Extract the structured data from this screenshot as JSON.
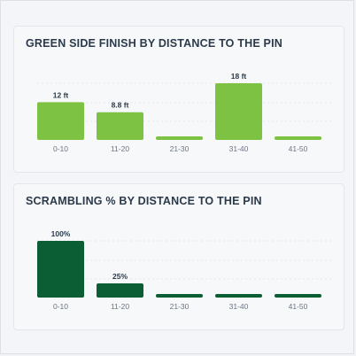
{
  "chart_data": [
    {
      "type": "bar",
      "title": "GREEN SIDE FINISH BY DISTANCE TO THE PIN",
      "categories": [
        "0-10",
        "11-20",
        "21-30",
        "31-40",
        "41-50"
      ],
      "values": [
        12,
        8.8,
        0,
        18,
        0
      ],
      "data_labels": [
        "12 ft",
        "8.8 ft",
        "",
        "18 ft",
        ""
      ],
      "unit": "ft",
      "ylim": [
        0,
        18
      ],
      "grid": true,
      "color": "#7dc242"
    },
    {
      "type": "bar",
      "title": "SCRAMBLING % BY DISTANCE TO THE PIN",
      "categories": [
        "0-10",
        "11-20",
        "21-30",
        "31-40",
        "41-50"
      ],
      "values": [
        100,
        25,
        0,
        0,
        0
      ],
      "data_labels": [
        "100%",
        "25%",
        "",
        "",
        ""
      ],
      "unit": "%",
      "ylim": [
        0,
        100
      ],
      "grid": true,
      "color": "#0b5d34"
    }
  ]
}
